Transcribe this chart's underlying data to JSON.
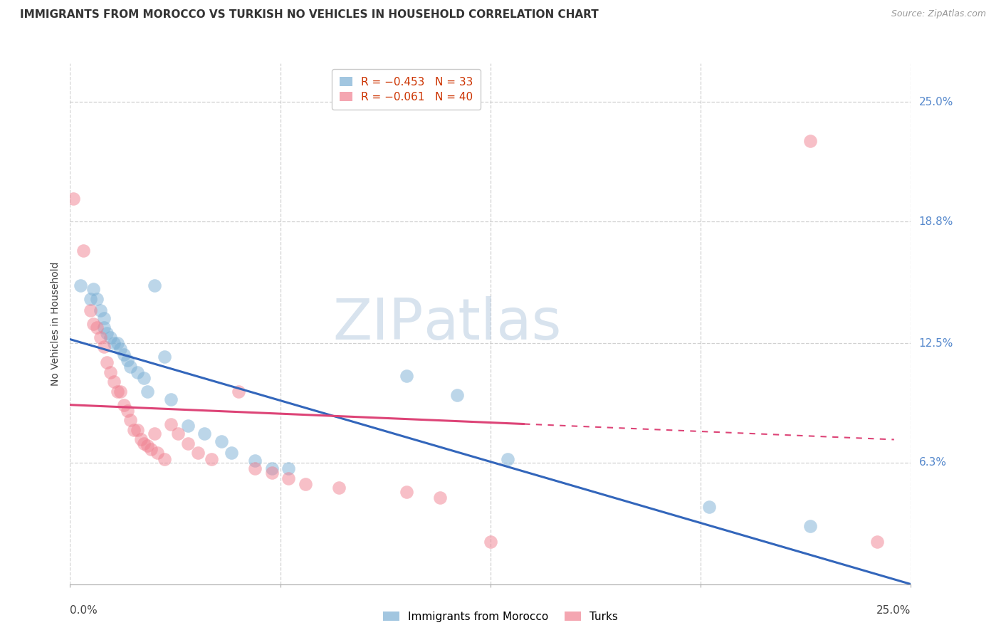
{
  "title": "IMMIGRANTS FROM MOROCCO VS TURKISH NO VEHICLES IN HOUSEHOLD CORRELATION CHART",
  "source": "Source: ZipAtlas.com",
  "ylabel": "No Vehicles in Household",
  "legend_label1": "Immigrants from Morocco",
  "legend_label2": "Turks",
  "watermark_zip": "ZIP",
  "watermark_atlas": "atlas",
  "blue_color": "#7bafd4",
  "pink_color": "#f08090",
  "blue_line_color": "#3366bb",
  "pink_line_color": "#dd4477",
  "xlim": [
    0.0,
    0.25
  ],
  "ylim": [
    0.0,
    0.27
  ],
  "ytick_values": [
    0.063,
    0.125,
    0.188,
    0.25
  ],
  "ytick_labels": [
    "6.3%",
    "12.5%",
    "18.8%",
    "25.0%"
  ],
  "xtick_positions": [
    0.0,
    0.0625,
    0.125,
    0.1875,
    0.25
  ],
  "grid_color": "#cccccc",
  "background_color": "#ffffff",
  "right_tick_color": "#5588cc",
  "blue_scatter": [
    [
      0.003,
      0.155
    ],
    [
      0.006,
      0.148
    ],
    [
      0.007,
      0.153
    ],
    [
      0.008,
      0.148
    ],
    [
      0.009,
      0.142
    ],
    [
      0.01,
      0.138
    ],
    [
      0.01,
      0.133
    ],
    [
      0.011,
      0.13
    ],
    [
      0.012,
      0.128
    ],
    [
      0.013,
      0.125
    ],
    [
      0.014,
      0.125
    ],
    [
      0.015,
      0.122
    ],
    [
      0.016,
      0.119
    ],
    [
      0.017,
      0.116
    ],
    [
      0.018,
      0.113
    ],
    [
      0.02,
      0.11
    ],
    [
      0.022,
      0.107
    ],
    [
      0.023,
      0.1
    ],
    [
      0.025,
      0.155
    ],
    [
      0.028,
      0.118
    ],
    [
      0.03,
      0.096
    ],
    [
      0.035,
      0.082
    ],
    [
      0.04,
      0.078
    ],
    [
      0.045,
      0.074
    ],
    [
      0.048,
      0.068
    ],
    [
      0.055,
      0.064
    ],
    [
      0.06,
      0.06
    ],
    [
      0.065,
      0.06
    ],
    [
      0.1,
      0.108
    ],
    [
      0.115,
      0.098
    ],
    [
      0.13,
      0.065
    ],
    [
      0.19,
      0.04
    ],
    [
      0.22,
      0.03
    ]
  ],
  "pink_scatter": [
    [
      0.001,
      0.2
    ],
    [
      0.004,
      0.173
    ],
    [
      0.006,
      0.142
    ],
    [
      0.007,
      0.135
    ],
    [
      0.008,
      0.133
    ],
    [
      0.009,
      0.128
    ],
    [
      0.01,
      0.123
    ],
    [
      0.011,
      0.115
    ],
    [
      0.012,
      0.11
    ],
    [
      0.013,
      0.105
    ],
    [
      0.014,
      0.1
    ],
    [
      0.015,
      0.1
    ],
    [
      0.016,
      0.093
    ],
    [
      0.017,
      0.09
    ],
    [
      0.018,
      0.085
    ],
    [
      0.019,
      0.08
    ],
    [
      0.02,
      0.08
    ],
    [
      0.021,
      0.075
    ],
    [
      0.022,
      0.073
    ],
    [
      0.023,
      0.072
    ],
    [
      0.024,
      0.07
    ],
    [
      0.025,
      0.078
    ],
    [
      0.026,
      0.068
    ],
    [
      0.028,
      0.065
    ],
    [
      0.03,
      0.083
    ],
    [
      0.032,
      0.078
    ],
    [
      0.035,
      0.073
    ],
    [
      0.038,
      0.068
    ],
    [
      0.042,
      0.065
    ],
    [
      0.05,
      0.1
    ],
    [
      0.055,
      0.06
    ],
    [
      0.06,
      0.058
    ],
    [
      0.065,
      0.055
    ],
    [
      0.07,
      0.052
    ],
    [
      0.08,
      0.05
    ],
    [
      0.1,
      0.048
    ],
    [
      0.11,
      0.045
    ],
    [
      0.125,
      0.022
    ],
    [
      0.22,
      0.23
    ],
    [
      0.24,
      0.022
    ]
  ],
  "blue_line_x": [
    0.0,
    0.25
  ],
  "blue_line_y": [
    0.127,
    0.0
  ],
  "pink_line_x": [
    0.0,
    0.245
  ],
  "pink_line_y": [
    0.093,
    0.075
  ]
}
